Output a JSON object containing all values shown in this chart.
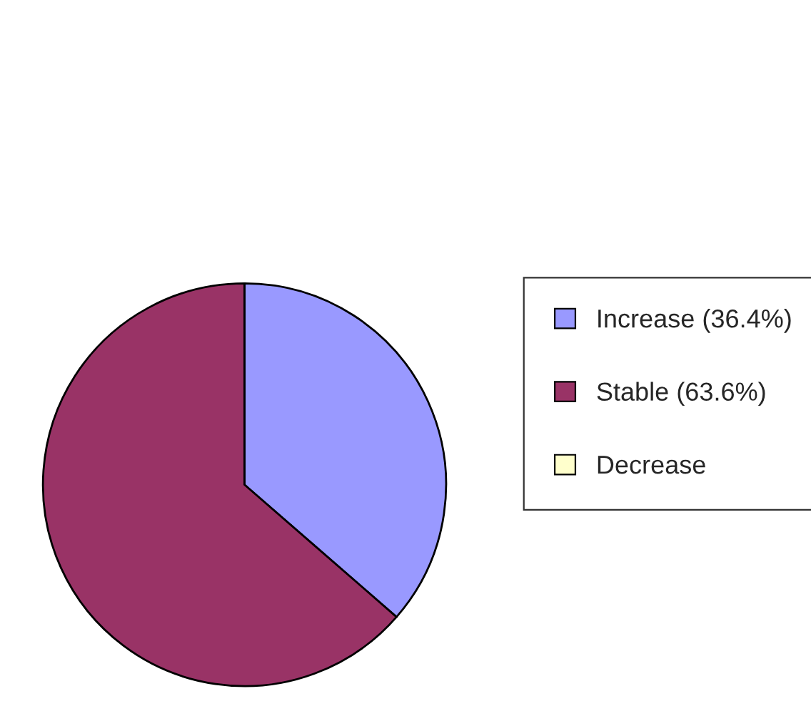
{
  "chart_data": {
    "type": "pie",
    "categories": [
      "Increase (36.4%)",
      "Stable (63.6%)",
      "Decrease"
    ],
    "values": [
      36.4,
      63.6,
      0
    ],
    "colors": [
      "#9999ff",
      "#993366",
      "#ffffcc"
    ],
    "legend": "right"
  }
}
